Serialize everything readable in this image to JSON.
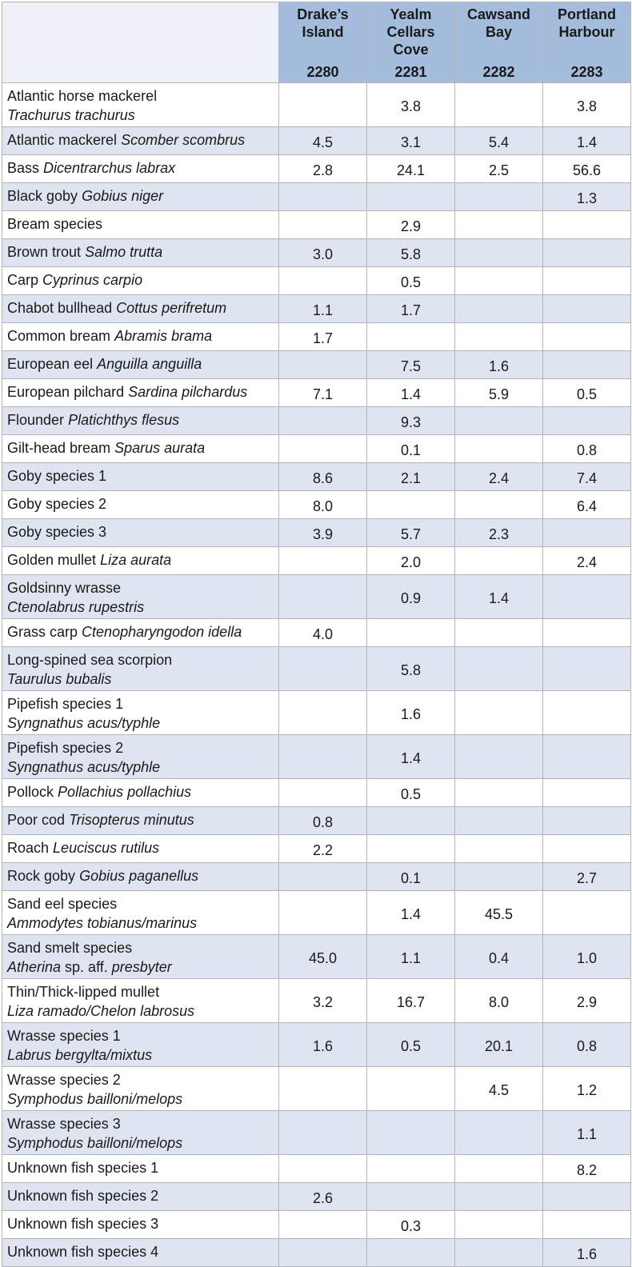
{
  "columns": [
    {
      "name_lines": [
        "Drake’s",
        "Island"
      ],
      "code": "2280"
    },
    {
      "name_lines": [
        "Yealm",
        "Cellars",
        "Cove"
      ],
      "code": "2281"
    },
    {
      "name_lines": [
        "Cawsand",
        "Bay"
      ],
      "code": "2282"
    },
    {
      "name_lines": [
        "Portland",
        "Harbour"
      ],
      "code": "2283"
    }
  ],
  "rows": [
    {
      "common": "Atlantic horse mackerel",
      "scientific": "Trachurus trachurus",
      "two_line": true,
      "values": [
        "",
        "3.8",
        "",
        "3.8"
      ]
    },
    {
      "common": "Atlantic mackerel",
      "scientific": "Scomber scombrus",
      "two_line": false,
      "values": [
        "4.5",
        "3.1",
        "5.4",
        "1.4"
      ]
    },
    {
      "common": "Bass",
      "scientific": "Dicentrarchus labrax",
      "two_line": false,
      "values": [
        "2.8",
        "24.1",
        "2.5",
        "56.6"
      ]
    },
    {
      "common": "Black goby",
      "scientific": "Gobius niger",
      "two_line": false,
      "values": [
        "",
        "",
        "",
        "1.3"
      ]
    },
    {
      "common": "Bream species",
      "scientific": "",
      "two_line": false,
      "values": [
        "",
        "2.9",
        "",
        ""
      ]
    },
    {
      "common": "Brown trout",
      "scientific": "Salmo trutta",
      "two_line": false,
      "values": [
        "3.0",
        "5.8",
        "",
        ""
      ]
    },
    {
      "common": "Carp",
      "scientific": "Cyprinus carpio",
      "two_line": false,
      "values": [
        "",
        "0.5",
        "",
        ""
      ]
    },
    {
      "common": "Chabot bullhead",
      "scientific": "Cottus perifretum",
      "two_line": false,
      "values": [
        "1.1",
        "1.7",
        "",
        ""
      ]
    },
    {
      "common": "Common bream",
      "scientific": "Abramis brama",
      "two_line": false,
      "values": [
        "1.7",
        "",
        "",
        ""
      ]
    },
    {
      "common": "European eel",
      "scientific": "Anguilla anguilla",
      "two_line": false,
      "values": [
        "",
        "7.5",
        "1.6",
        ""
      ]
    },
    {
      "common": "European pilchard",
      "scientific": "Sardina pilchardus",
      "two_line": false,
      "values": [
        "7.1",
        "1.4",
        "5.9",
        "0.5"
      ]
    },
    {
      "common": "Flounder",
      "scientific": "Platichthys flesus",
      "two_line": false,
      "values": [
        "",
        "9.3",
        "",
        ""
      ]
    },
    {
      "common": "Gilt-head bream",
      "scientific": "Sparus aurata",
      "two_line": false,
      "values": [
        "",
        "0.1",
        "",
        "0.8"
      ]
    },
    {
      "common": "Goby species 1",
      "scientific": "",
      "two_line": false,
      "values": [
        "8.6",
        "2.1",
        "2.4",
        "7.4"
      ]
    },
    {
      "common": "Goby species 2",
      "scientific": "",
      "two_line": false,
      "values": [
        "8.0",
        "",
        "",
        "6.4"
      ]
    },
    {
      "common": "Goby species 3",
      "scientific": "",
      "two_line": false,
      "values": [
        "3.9",
        "5.7",
        "2.3",
        ""
      ]
    },
    {
      "common": "Golden mullet",
      "scientific": "Liza aurata",
      "two_line": false,
      "values": [
        "",
        "2.0",
        "",
        "2.4"
      ]
    },
    {
      "common": "Goldsinny wrasse",
      "scientific": "Ctenolabrus rupestris",
      "two_line": true,
      "values": [
        "",
        "0.9",
        "1.4",
        ""
      ]
    },
    {
      "common": "Grass carp",
      "scientific": "Ctenopharyngodon idella",
      "two_line": false,
      "values": [
        "4.0",
        "",
        "",
        ""
      ]
    },
    {
      "common": "Long-spined sea scorpion",
      "scientific": "Taurulus bubalis",
      "two_line": true,
      "values": [
        "",
        "5.8",
        "",
        ""
      ]
    },
    {
      "common": "Pipefish species 1",
      "scientific": "Syngnathus acus/typhle",
      "two_line": true,
      "values": [
        "",
        "1.6",
        "",
        ""
      ]
    },
    {
      "common": "Pipefish species 2",
      "scientific": "Syngnathus acus/typhle",
      "two_line": true,
      "values": [
        "",
        "1.4",
        "",
        ""
      ]
    },
    {
      "common": "Pollock",
      "scientific": "Pollachius pollachius",
      "two_line": false,
      "values": [
        "",
        "0.5",
        "",
        ""
      ]
    },
    {
      "common": "Poor cod",
      "scientific": "Trisopterus minutus",
      "two_line": false,
      "values": [
        "0.8",
        "",
        "",
        ""
      ]
    },
    {
      "common": "Roach",
      "scientific": "Leuciscus rutilus",
      "two_line": false,
      "values": [
        "2.2",
        "",
        "",
        ""
      ]
    },
    {
      "common": "Rock goby",
      "scientific": "Gobius paganellus",
      "two_line": false,
      "values": [
        "",
        "0.1",
        "",
        "2.7"
      ]
    },
    {
      "common": "Sand eel species",
      "scientific": "Ammodytes tobianus/marinus",
      "two_line": true,
      "values": [
        "",
        "1.4",
        "45.5",
        ""
      ]
    },
    {
      "common": "Sand smelt species",
      "scientific": "Atherina",
      "scientific_suffix": " sp. aff. ",
      "scientific2": "presbyter",
      "two_line": true,
      "values": [
        "45.0",
        "1.1",
        "0.4",
        "1.0"
      ]
    },
    {
      "common": "Thin/Thick-lipped mullet",
      "scientific": "Liza ramado/Chelon labrosus",
      "two_line": true,
      "values": [
        "3.2",
        "16.7",
        "8.0",
        "2.9"
      ]
    },
    {
      "common": "Wrasse species 1",
      "scientific": "Labrus bergylta/mixtus",
      "two_line": true,
      "values": [
        "1.6",
        "0.5",
        "20.1",
        "0.8"
      ]
    },
    {
      "common": "Wrasse species 2",
      "scientific": "Symphodus bailloni/melops",
      "two_line": true,
      "values": [
        "",
        "",
        "4.5",
        "1.2"
      ]
    },
    {
      "common": "Wrasse species 3",
      "scientific": "Symphodus bailloni/melops",
      "two_line": true,
      "values": [
        "",
        "",
        "",
        "1.1"
      ]
    },
    {
      "common": "Unknown fish species 1",
      "scientific": "",
      "two_line": false,
      "values": [
        "",
        "",
        "",
        "8.2"
      ]
    },
    {
      "common": "Unknown fish species 2",
      "scientific": "",
      "two_line": false,
      "values": [
        "2.6",
        "",
        "",
        ""
      ]
    },
    {
      "common": "Unknown fish species 3",
      "scientific": "",
      "two_line": false,
      "values": [
        "",
        "0.3",
        "",
        ""
      ]
    },
    {
      "common": "Unknown fish species 4",
      "scientific": "",
      "two_line": false,
      "values": [
        "",
        "",
        "",
        "1.6"
      ]
    }
  ]
}
